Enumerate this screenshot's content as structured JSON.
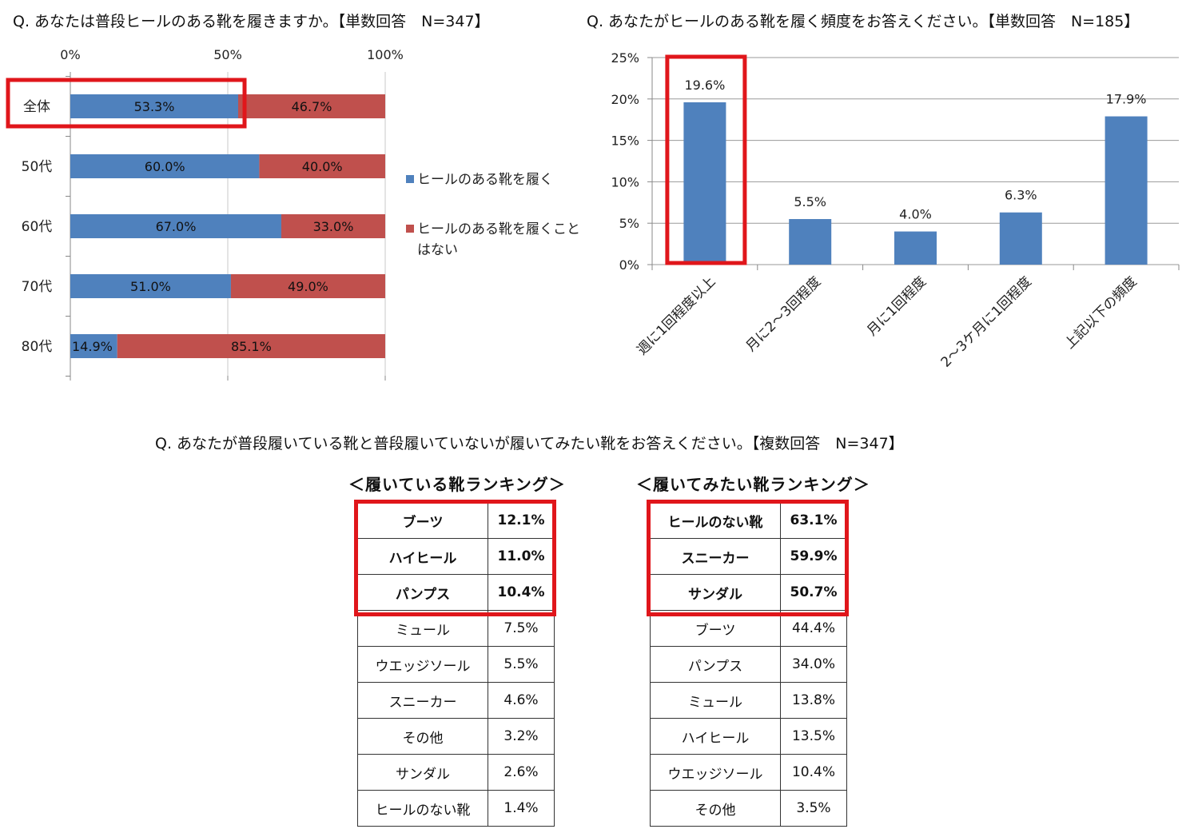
{
  "colors": {
    "blue": "#4f81bd",
    "red": "#c0504d",
    "highlight": "#e0161b"
  },
  "chart1_title": "Q. あなたは普段ヒールのある靴を履きますか。【単数回答　N=347】",
  "chart2_title": "Q. あなたがヒールのある靴を履く頻度をお答えください。【単数回答　N=185】",
  "section3_title": "Q. あなたが普段履いている靴と普段履いていないが履いてみたい靴をお答えください。【複数回答　N=347】",
  "legend": {
    "item1": "ヒールのある靴を履く",
    "item2_line1": "ヒールのある靴を履くこと",
    "item2_line2": "はない"
  },
  "chart_data": [
    {
      "type": "bar",
      "orientation": "horizontal",
      "stacked": true,
      "categories": [
        "全体",
        "50代",
        "60代",
        "70代",
        "80代"
      ],
      "series": [
        {
          "name": "ヒールのある靴を履く",
          "values": [
            53.3,
            60.0,
            67.0,
            51.0,
            14.9
          ],
          "labels": [
            "53.3%",
            "60.0%",
            "67.0%",
            "51.0%",
            "14.9%"
          ]
        },
        {
          "name": "ヒールのある靴を履くことはない",
          "values": [
            46.7,
            40.0,
            33.0,
            49.0,
            85.1
          ],
          "labels": [
            "46.7%",
            "40.0%",
            "33.0%",
            "49.0%",
            "85.1%"
          ]
        }
      ],
      "xticks": [
        "0%",
        "50%",
        "100%"
      ],
      "xlim": [
        0,
        100
      ],
      "legend_position": "right",
      "highlighted_category": "全体"
    },
    {
      "type": "bar",
      "categories": [
        "週に1回程度以上",
        "月に2～3回程度",
        "月に1回程度",
        "2～3ケ月に1回程度",
        "上記以下の頻度"
      ],
      "values": [
        19.6,
        5.5,
        4.0,
        6.3,
        17.9
      ],
      "labels": [
        "19.6%",
        "5.5%",
        "4.0%",
        "6.3%",
        "17.9%"
      ],
      "yticks": [
        "0%",
        "5%",
        "10%",
        "15%",
        "20%",
        "25%"
      ],
      "ylim": [
        0,
        25
      ],
      "grid": true,
      "highlighted_category": "週に1回程度以上"
    },
    {
      "type": "table",
      "title": "＜履いている靴ランキング＞",
      "rows": [
        [
          "ブーツ",
          "12.1%"
        ],
        [
          "ハイヒール",
          "11.0%"
        ],
        [
          "パンプス",
          "10.4%"
        ],
        [
          "ミュール",
          "7.5%"
        ],
        [
          "ウエッジソール",
          "5.5%"
        ],
        [
          "スニーカー",
          "4.6%"
        ],
        [
          "その他",
          "3.2%"
        ],
        [
          "サンダル",
          "2.6%"
        ],
        [
          "ヒールのない靴",
          "1.4%"
        ]
      ],
      "highlighted_rows": 3
    },
    {
      "type": "table",
      "title": "＜履いてみたい靴ランキング＞",
      "rows": [
        [
          "ヒールのない靴",
          "63.1%"
        ],
        [
          "スニーカー",
          "59.9%"
        ],
        [
          "サンダル",
          "50.7%"
        ],
        [
          "ブーツ",
          "44.4%"
        ],
        [
          "パンプス",
          "34.0%"
        ],
        [
          "ミュール",
          "13.8%"
        ],
        [
          "ハイヒール",
          "13.5%"
        ],
        [
          "ウエッジソール",
          "10.4%"
        ],
        [
          "その他",
          "3.5%"
        ]
      ],
      "highlighted_rows": 3
    }
  ]
}
